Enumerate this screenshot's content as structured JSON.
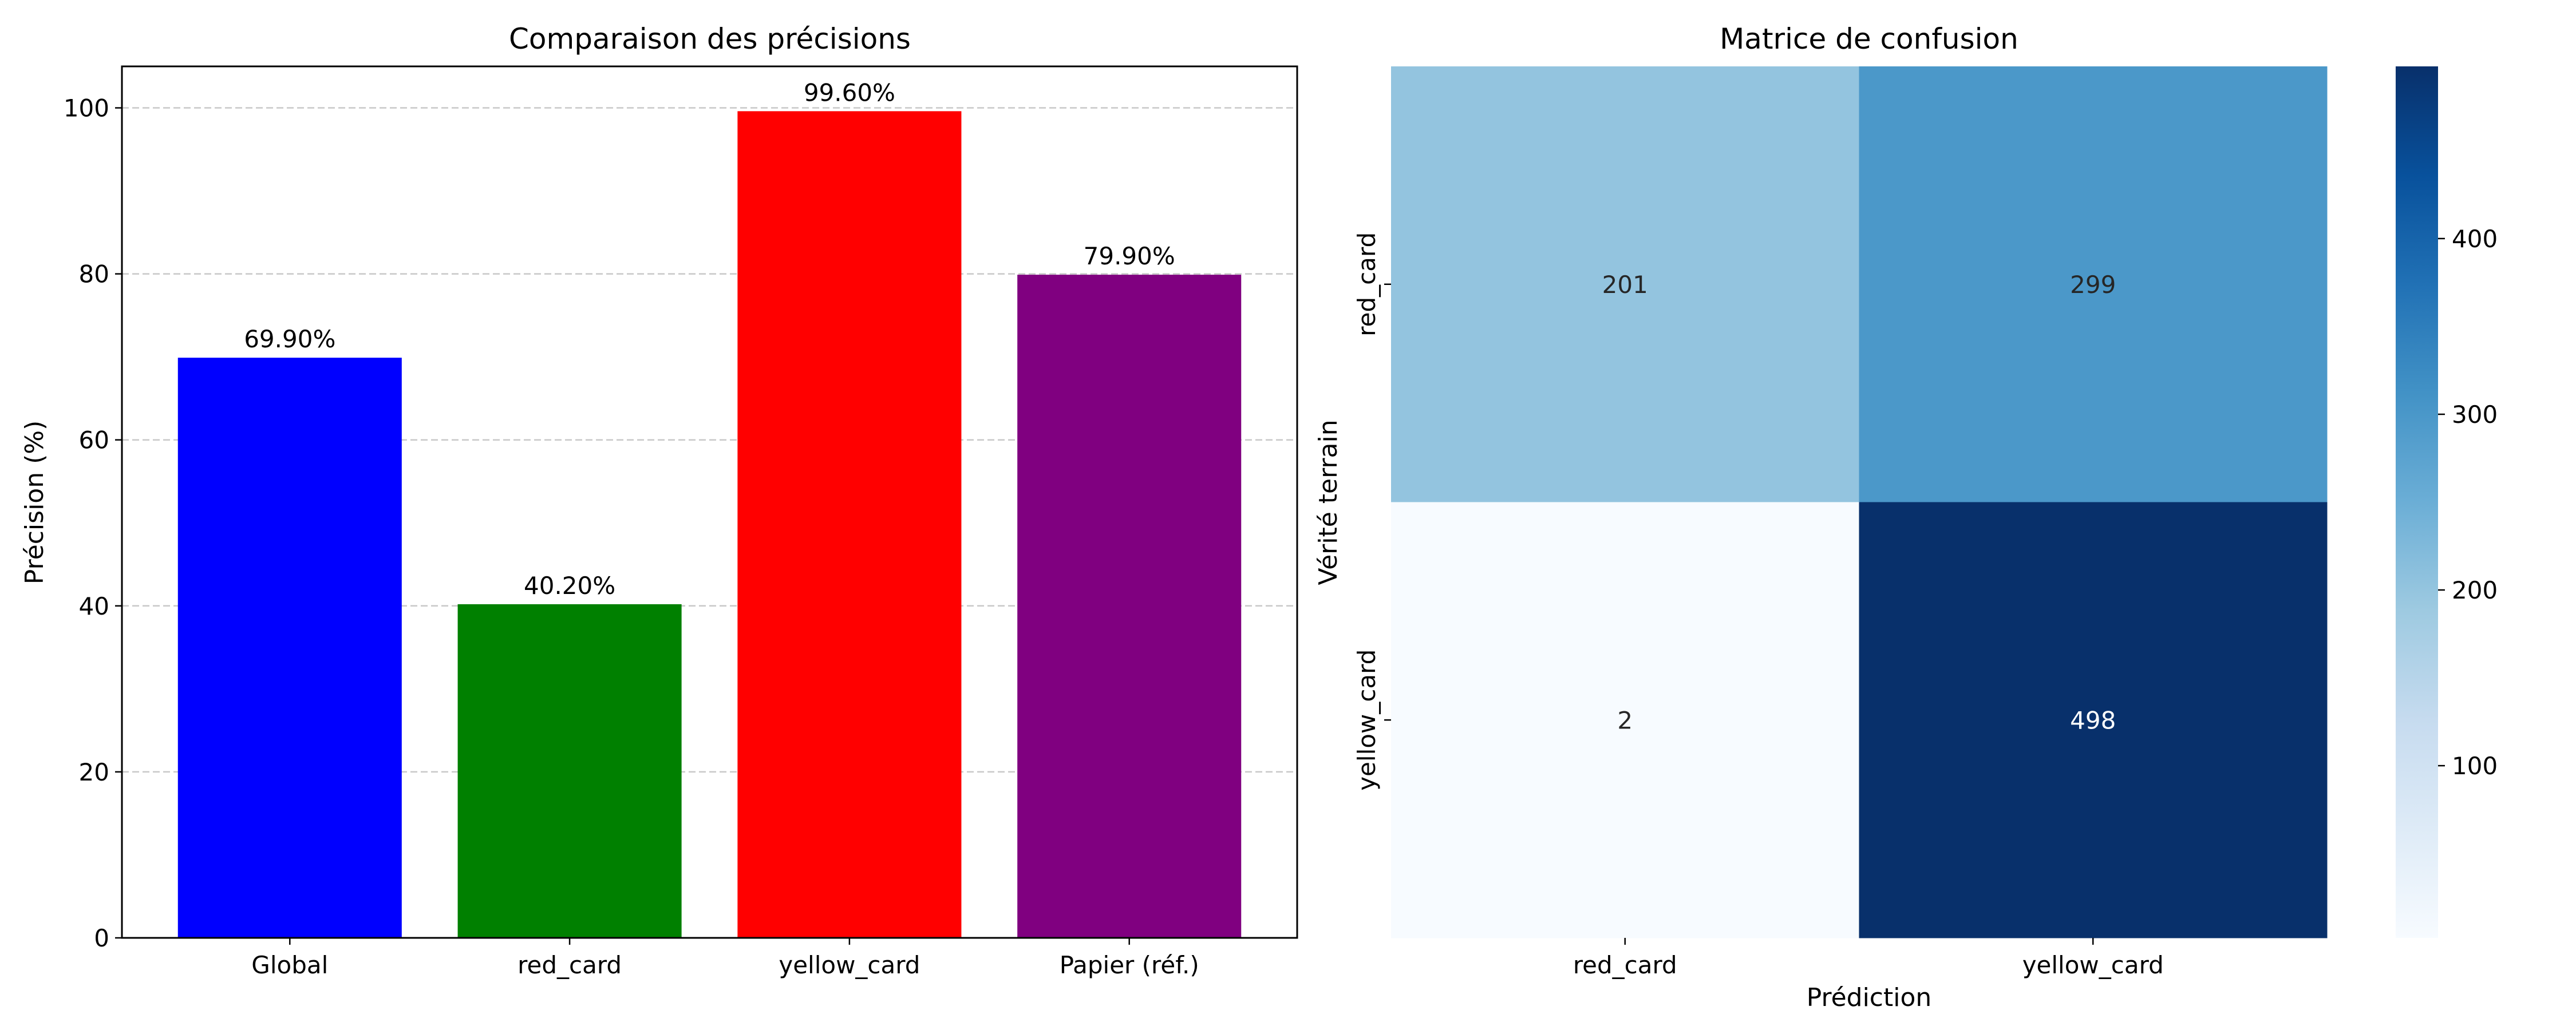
{
  "chart_data": [
    {
      "type": "bar",
      "title": "Comparaison des précisions",
      "ylabel": "Précision (%)",
      "xlabel": "",
      "categories": [
        "Global",
        "red_card",
        "yellow_card",
        "Papier (réf.)"
      ],
      "values": [
        69.9,
        40.2,
        99.6,
        79.9
      ],
      "value_labels": [
        "69.90%",
        "40.20%",
        "99.60%",
        "79.90%"
      ],
      "colors": [
        "#0000ff",
        "#008000",
        "#ff0000",
        "#800080"
      ],
      "ylim": [
        0,
        105
      ],
      "yticks": [
        0,
        20,
        40,
        60,
        80,
        100
      ],
      "grid": "y-dashed"
    },
    {
      "type": "heatmap",
      "title": "Matrice de confusion",
      "xlabel": "Prédiction",
      "ylabel": "Vérité terrain",
      "x_categories": [
        "red_card",
        "yellow_card"
      ],
      "y_categories": [
        "red_card",
        "yellow_card"
      ],
      "values": [
        [
          201,
          299
        ],
        [
          2,
          498
        ]
      ],
      "colormap": "Blues",
      "colorbar": {
        "min": 2,
        "max": 498,
        "ticks": [
          100,
          200,
          300,
          400
        ]
      }
    }
  ]
}
